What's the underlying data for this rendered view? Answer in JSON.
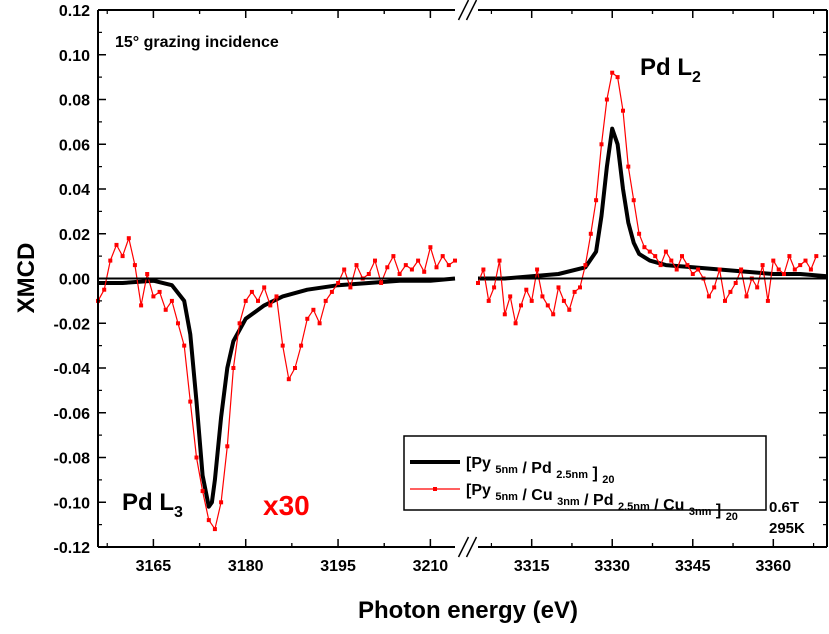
{
  "chart_data": {
    "type": "line",
    "xlabel": "Photon energy (eV)",
    "ylabel": "XMCD",
    "ylim": [
      -0.12,
      0.12
    ],
    "y_ticks": [
      "-0.12",
      "-0.10",
      "-0.08",
      "-0.06",
      "-0.04",
      "-0.02",
      "0.00",
      "0.02",
      "0.04",
      "0.06",
      "0.08",
      "0.10",
      "0.12"
    ],
    "x_broken_axis": true,
    "x_segments": [
      {
        "xlim": [
          3156,
          3214
        ],
        "ticks": [
          "3165",
          "3180",
          "3195",
          "3210"
        ]
      },
      {
        "xlim": [
          3305,
          3370
        ],
        "ticks": [
          "3315",
          "3330",
          "3345",
          "3360"
        ]
      }
    ],
    "grid": false,
    "legend_position": "bottom-right",
    "annotations": {
      "incidence": "15° grazing incidence",
      "l3_label": "Pd L",
      "l3_sub": "3",
      "l2_label": "Pd L",
      "l2_sub": "2",
      "scale": "x30",
      "field": "0.6T",
      "temp": "295K"
    },
    "legend": [
      {
        "name": "[Py 5nm / Pd 2.5nm ] 20",
        "parts": [
          [
            "[Py ",
            ""
          ],
          [
            "5nm",
            "sub"
          ],
          [
            " / Pd ",
            ""
          ],
          [
            "2.5nm",
            "sub"
          ],
          [
            " ] ",
            ""
          ],
          [
            "20",
            "sub"
          ]
        ]
      },
      {
        "name": "[Py 5nm / Cu 3nm / Pd 2.5nm / Cu 3nm ] 20",
        "parts": [
          [
            "[Py ",
            ""
          ],
          [
            "5nm",
            "sub"
          ],
          [
            " / Cu ",
            ""
          ],
          [
            "3nm",
            "sub"
          ],
          [
            " / Pd ",
            ""
          ],
          [
            "2.5nm",
            "sub"
          ],
          [
            " / Cu ",
            ""
          ],
          [
            "3nm",
            "sub"
          ],
          [
            " ] ",
            ""
          ],
          [
            "20",
            "sub"
          ]
        ]
      }
    ],
    "series": [
      {
        "color": "#000000",
        "style": "thick-line",
        "segments": [
          {
            "x": [
              3156,
              3160,
              3165,
              3168,
              3170,
              3171,
              3172,
              3173,
              3174,
              3174.5,
              3175,
              3176,
              3177,
              3178,
              3180,
              3183,
              3186,
              3190,
              3195,
              3200,
              3205,
              3210,
              3214
            ],
            "y": [
              -0.002,
              -0.002,
              -0.001,
              -0.003,
              -0.01,
              -0.025,
              -0.055,
              -0.088,
              -0.102,
              -0.1,
              -0.09,
              -0.062,
              -0.04,
              -0.028,
              -0.018,
              -0.012,
              -0.008,
              -0.005,
              -0.003,
              -0.002,
              -0.001,
              -0.001,
              0.0
            ]
          },
          {
            "x": [
              3305,
              3310,
              3315,
              3320,
              3325,
              3327,
              3328,
              3329,
              3330,
              3331,
              3332,
              3333,
              3334,
              3335,
              3337,
              3340,
              3345,
              3350,
              3355,
              3360,
              3365,
              3370
            ],
            "y": [
              0.0,
              0.0,
              0.001,
              0.002,
              0.005,
              0.012,
              0.028,
              0.05,
              0.067,
              0.06,
              0.04,
              0.025,
              0.016,
              0.011,
              0.008,
              0.006,
              0.005,
              0.004,
              0.003,
              0.002,
              0.002,
              0.001
            ]
          }
        ]
      },
      {
        "color": "#ff0000",
        "style": "line-markers",
        "segments": [
          {
            "x": [
              3156,
              3157,
              3158,
              3159,
              3160,
              3161,
              3162,
              3163,
              3164,
              3165,
              3166,
              3167,
              3168,
              3169,
              3170,
              3171,
              3172,
              3173,
              3174,
              3175,
              3176,
              3177,
              3178,
              3179,
              3180,
              3181,
              3182,
              3183,
              3184,
              3185,
              3186,
              3187,
              3188,
              3189,
              3190,
              3191,
              3192,
              3193,
              3194,
              3195,
              3196,
              3197,
              3198,
              3199,
              3200,
              3201,
              3202,
              3203,
              3204,
              3205,
              3206,
              3207,
              3208,
              3209,
              3210,
              3211,
              3212,
              3213,
              3214
            ],
            "y": [
              -0.01,
              -0.005,
              0.008,
              0.015,
              0.01,
              0.018,
              0.006,
              -0.012,
              0.002,
              -0.008,
              -0.006,
              -0.014,
              -0.01,
              -0.02,
              -0.03,
              -0.055,
              -0.08,
              -0.095,
              -0.108,
              -0.112,
              -0.1,
              -0.075,
              -0.04,
              -0.02,
              -0.01,
              -0.006,
              -0.01,
              -0.004,
              -0.012,
              -0.008,
              -0.03,
              -0.045,
              -0.04,
              -0.03,
              -0.018,
              -0.014,
              -0.02,
              -0.01,
              -0.006,
              -0.002,
              0.004,
              -0.004,
              0.006,
              0.0,
              0.002,
              0.008,
              -0.002,
              0.005,
              0.01,
              0.002,
              0.006,
              0.004,
              0.008,
              0.003,
              0.014,
              0.005,
              0.01,
              0.006,
              0.008
            ]
          },
          {
            "x": [
              3305,
              3306,
              3307,
              3308,
              3309,
              3310,
              3311,
              3312,
              3313,
              3314,
              3315,
              3316,
              3317,
              3318,
              3319,
              3320,
              3321,
              3322,
              3323,
              3324,
              3325,
              3326,
              3327,
              3328,
              3329,
              3330,
              3331,
              3332,
              3333,
              3334,
              3335,
              3336,
              3337,
              3338,
              3339,
              3340,
              3341,
              3342,
              3343,
              3344,
              3345,
              3346,
              3347,
              3348,
              3349,
              3350,
              3351,
              3352,
              3353,
              3354,
              3355,
              3356,
              3357,
              3358,
              3359,
              3360,
              3361,
              3362,
              3363,
              3364,
              3365,
              3366,
              3367,
              3368
            ],
            "y": [
              -0.002,
              0.004,
              -0.01,
              -0.004,
              0.008,
              -0.016,
              -0.008,
              -0.02,
              -0.012,
              -0.005,
              -0.01,
              0.004,
              -0.008,
              -0.012,
              -0.016,
              -0.004,
              -0.01,
              -0.014,
              -0.006,
              -0.004,
              0.006,
              0.02,
              0.035,
              0.06,
              0.08,
              0.092,
              0.09,
              0.075,
              0.05,
              0.035,
              0.02,
              0.014,
              0.012,
              0.01,
              0.006,
              0.012,
              0.008,
              0.004,
              0.01,
              0.006,
              0.002,
              0.004,
              0.0,
              -0.008,
              -0.004,
              0.004,
              -0.01,
              -0.006,
              -0.002,
              0.004,
              -0.008,
              0.0,
              -0.004,
              0.006,
              -0.01,
              0.008,
              0.004,
              0.002,
              0.01,
              0.004,
              0.006,
              0.008,
              0.004,
              0.01
            ]
          }
        ]
      }
    ]
  }
}
